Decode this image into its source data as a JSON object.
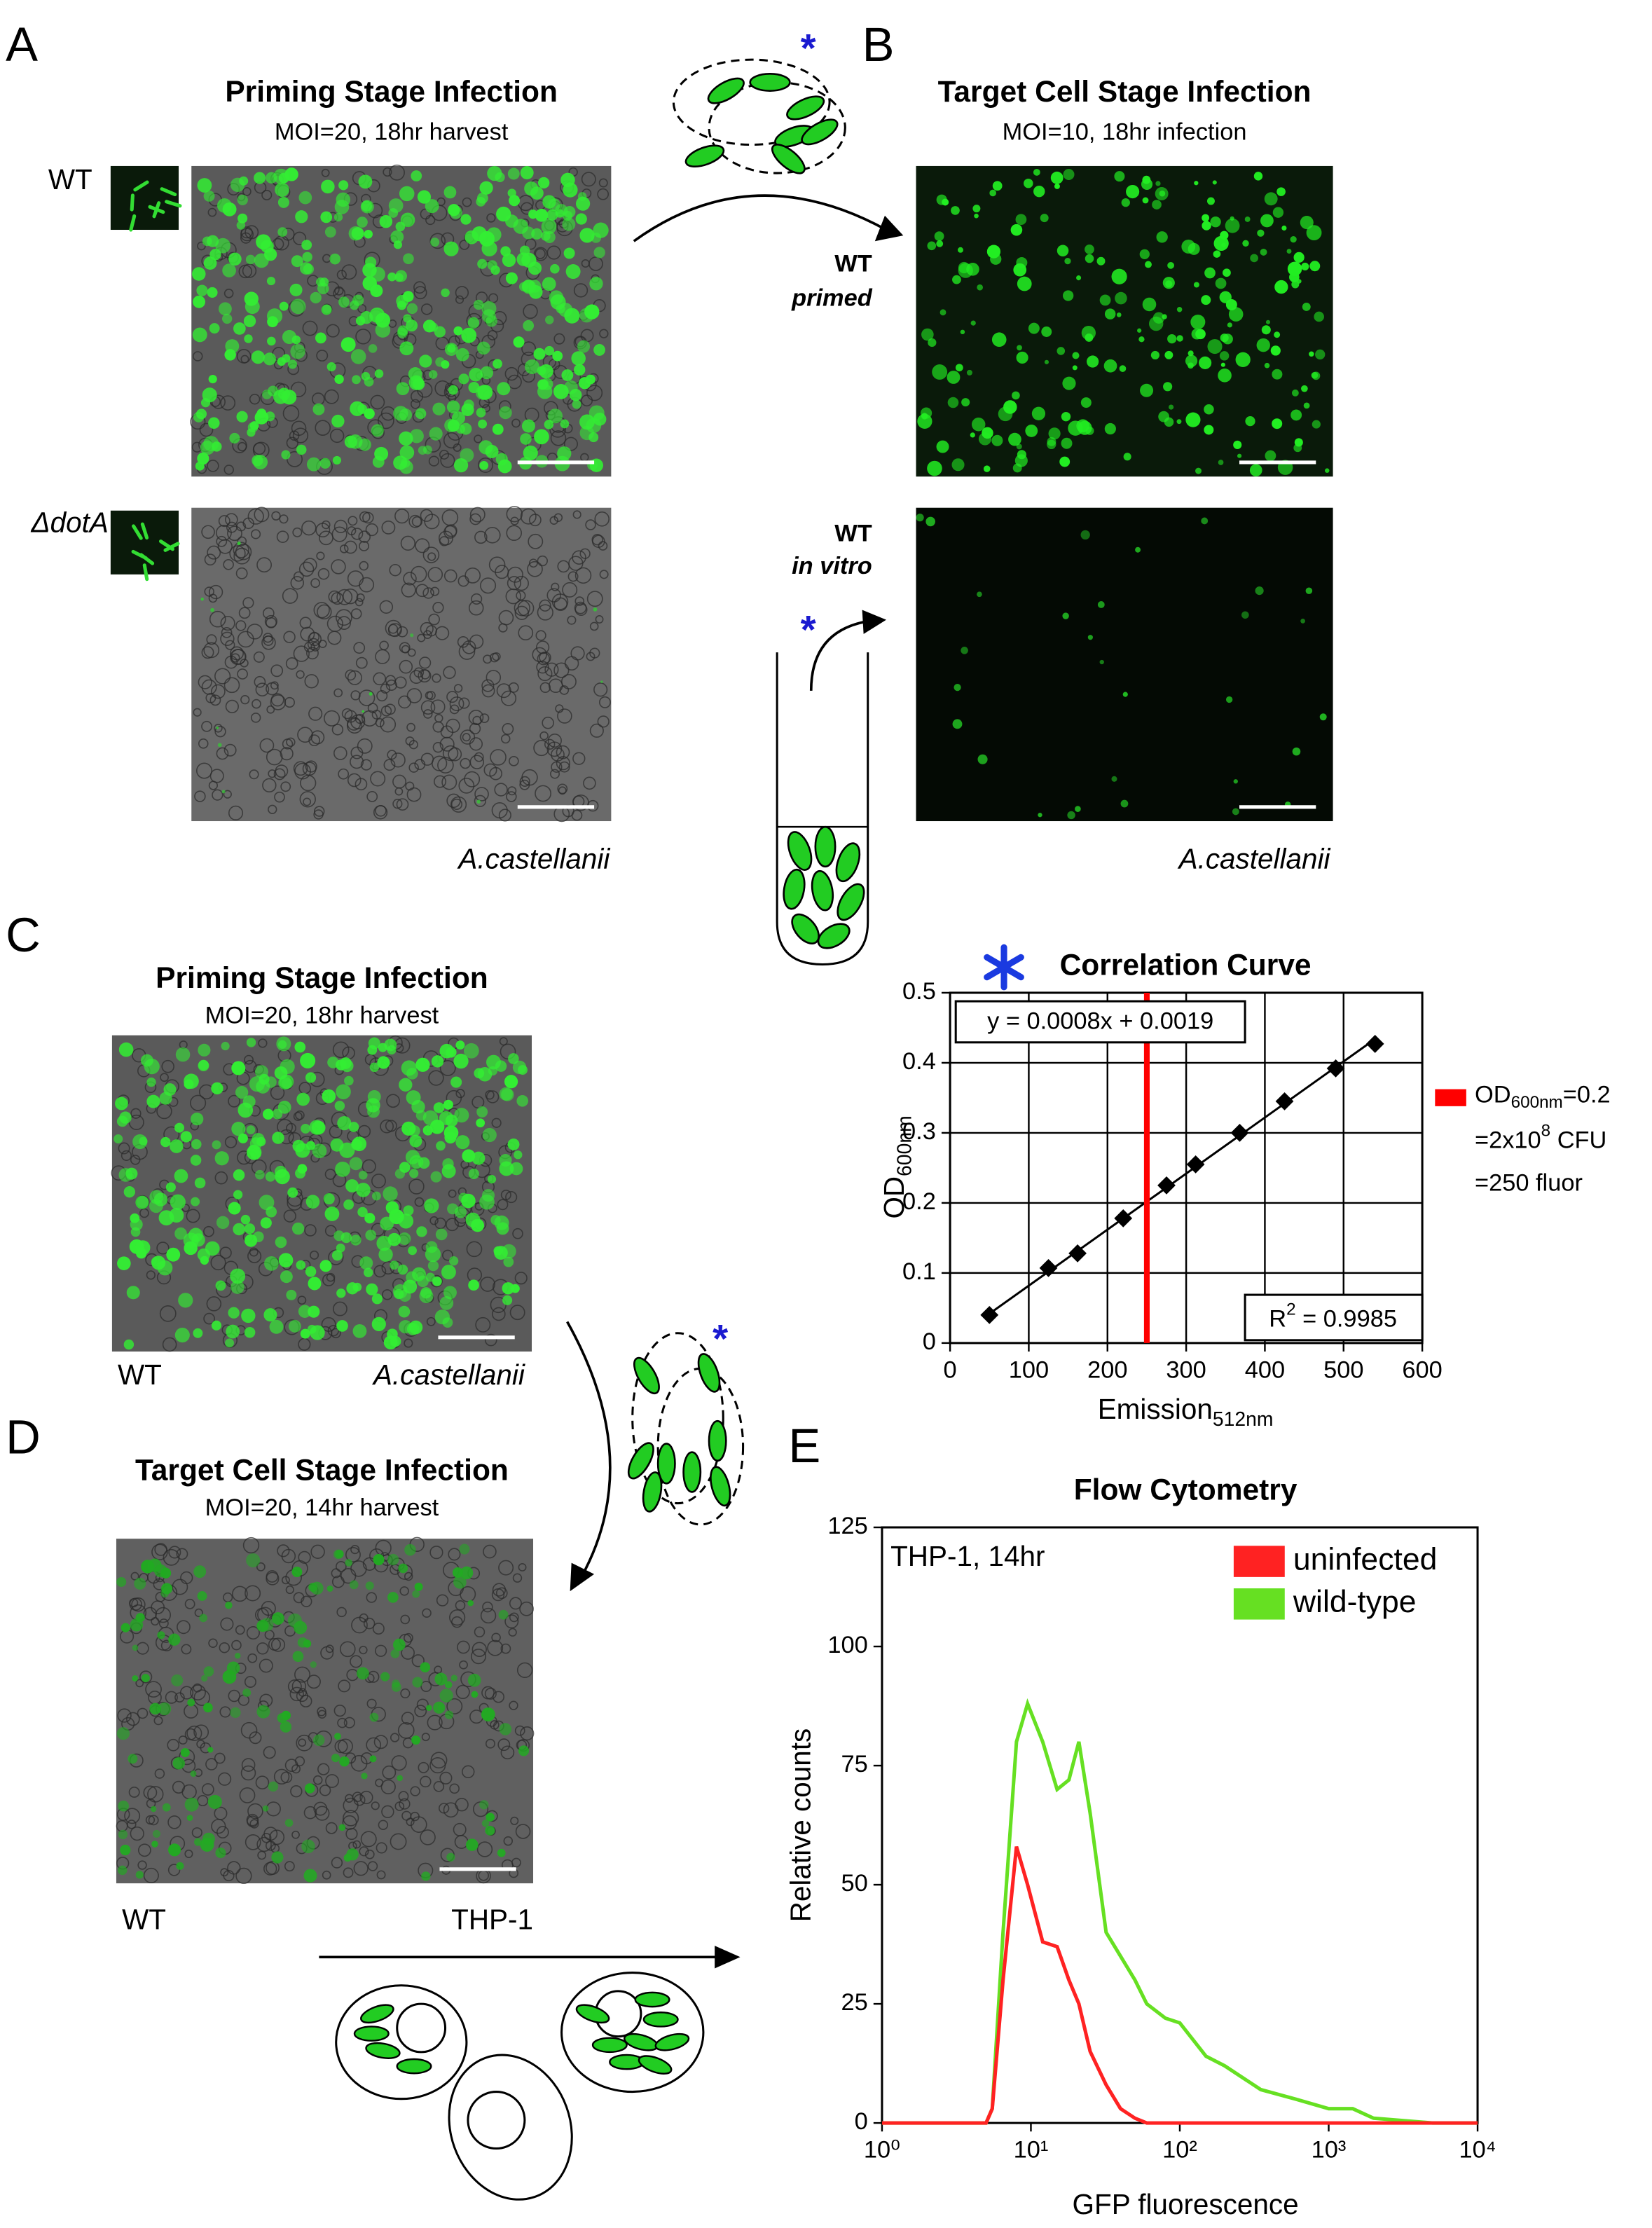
{
  "panels": {
    "A": {
      "letter": "A",
      "title": "Priming Stage Infection",
      "subtitle": "MOI=20, 18hr harvest",
      "row_labels": [
        "WT",
        "ΔdotA"
      ],
      "caption": "A.castellanii"
    },
    "B": {
      "letter": "B",
      "title": "Target Cell Stage Infection",
      "subtitle": "MOI=10, 18hr infection",
      "primed": {
        "strain": "WT",
        "condition": "primed"
      },
      "in_vitro": {
        "strain": "WT",
        "condition": "in vitro"
      },
      "caption": "A.castellanii",
      "asterisks": [
        "*",
        "*"
      ]
    },
    "C": {
      "letter": "C",
      "title": "Priming Stage Infection",
      "subtitle": "MOI=20, 18hr harvest",
      "strain": "WT",
      "caption": "A.castellanii",
      "asterisk": "*"
    },
    "D": {
      "letter": "D",
      "title": "Target Cell Stage Infection",
      "subtitle": "MOI=20, 14hr harvest",
      "strain": "WT",
      "caption": "THP-1"
    },
    "E": {
      "letter": "E"
    }
  },
  "chart_data": [
    {
      "type": "scatter",
      "title": "Correlation Curve",
      "x": [
        50,
        125,
        162,
        220,
        275,
        312,
        368,
        425,
        490,
        540
      ],
      "values": [
        0.04,
        0.107,
        0.128,
        0.178,
        0.225,
        0.255,
        0.3,
        0.345,
        0.392,
        0.427
      ],
      "color": "#000000",
      "xlim": [
        0,
        600
      ],
      "xticks": [
        0,
        100,
        200,
        300,
        400,
        500,
        600
      ],
      "ylim": [
        0,
        0.5
      ],
      "yticks": [
        0,
        0.1,
        0.2,
        0.3,
        0.4,
        0.5
      ],
      "grid": true,
      "x_label": {
        "main": "Emission",
        "sub": "512nm"
      },
      "y_label": {
        "main": "OD",
        "sub": "600nm"
      },
      "trendline": {
        "x": [
          50,
          540
        ],
        "values": [
          0.0419,
          0.4339
        ],
        "equation": "y = 0.0008x + 0.0019",
        "r2": {
          "main": "R",
          "sup": "2",
          "rest": " = 0.9985"
        }
      },
      "marker": {
        "x": 250,
        "color": "#ff0000",
        "label": {
          "l1": {
            "main": "OD",
            "sub": "600nm",
            "rest": "=0.2"
          },
          "l2": {
            "main": "=2x10",
            "sup": "8",
            "rest": " CFU"
          },
          "l3": "=250 fluor"
        }
      }
    },
    {
      "type": "line",
      "title": "Flow Cytometry",
      "annotation": "THP-1, 14hr",
      "x": [
        1,
        5,
        5.5,
        6.5,
        8,
        9.5,
        12,
        15,
        18,
        21,
        25,
        32,
        40,
        50,
        60,
        80,
        100,
        150,
        200,
        350,
        600,
        1000,
        1450,
        2000,
        5000,
        10000
      ],
      "series": [
        {
          "name": "uninfected",
          "color": "#ff2222",
          "values": [
            0,
            0,
            3,
            30,
            58,
            50,
            38,
            37,
            30,
            25,
            15,
            8,
            3,
            1,
            0,
            0,
            0,
            0,
            0,
            0,
            0,
            0,
            0,
            0,
            0,
            0
          ]
        },
        {
          "name": "wild-type",
          "color": "#66e022",
          "values": [
            0,
            0,
            3,
            40,
            80,
            88,
            80,
            70,
            72,
            80,
            65,
            40,
            35,
            30,
            25,
            22,
            21,
            14,
            12,
            7,
            5,
            3,
            3,
            1,
            0,
            0
          ]
        }
      ],
      "xscale": "log",
      "xlim": [
        1,
        10000
      ],
      "xticks": [
        {
          "value": 1,
          "label": "10⁰"
        },
        {
          "value": 10,
          "label": "10¹"
        },
        {
          "value": 100,
          "label": "10²"
        },
        {
          "value": 1000,
          "label": "10³"
        },
        {
          "value": 10000,
          "label": "10⁴"
        }
      ],
      "ylim": [
        0,
        125
      ],
      "yticks": [
        0,
        25,
        50,
        75,
        100,
        125
      ],
      "grid": false,
      "legend": "top-right",
      "x_label": "GFP fluorescence",
      "y_label": "Relative counts"
    }
  ]
}
